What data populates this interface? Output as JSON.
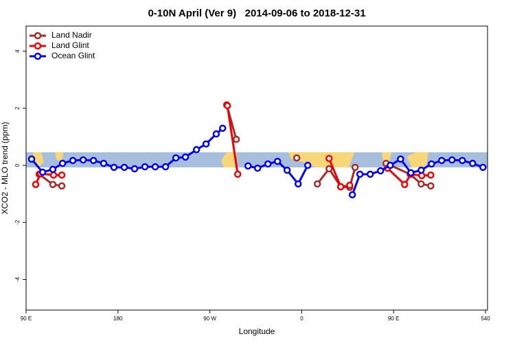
{
  "chart_data": {
    "type": "line",
    "title": "0-10N April (Ver 9)   2014-09-06 to 2018-12-31",
    "xlabel": "Longitude",
    "ylabel": "XCO2 - MLO trend (ppm)",
    "xlim": [
      90,
      542
    ],
    "ylim": [
      -5.07,
      4.88
    ],
    "xticks": [
      {
        "value": 90,
        "label": "90 E"
      },
      180,
      {
        "value": 270,
        "label": "90 W"
      },
      {
        "value": 360,
        "label": "0"
      },
      {
        "value": 450,
        "label": "90 E"
      },
      540
    ],
    "yticks": [
      -4,
      -2,
      0,
      2,
      4
    ],
    "legend": "top-left",
    "series": [
      {
        "name": "Land Nadir",
        "color": "#a52a2a",
        "x": [
          102.8,
          116.2,
          125,
          null,
          286.5,
          295.9,
          null,
          355.1,
          null,
          375.3,
          386.8,
          398.2,
          407,
          412.3,
          null,
          442.6,
          466.2,
          477,
          486.4
        ],
        "values": [
          -0.31,
          -0.67,
          -0.72,
          null,
          2.12,
          0.91,
          null,
          0.26,
          null,
          -0.65,
          -0.12,
          -0.75,
          -0.77,
          -0.07,
          null,
          0.07,
          -0.31,
          -0.65,
          -0.72
        ]
      },
      {
        "name": "Land Glint",
        "color": "#ee0000",
        "x": [
          99.4,
          104.1,
          116.9,
          125,
          null,
          287.2,
          297.3,
          null,
          386.8,
          398.2,
          407,
          null,
          444,
          460.8,
          466.9,
          477.6,
          486.4
        ],
        "values": [
          -0.67,
          -0.29,
          -0.34,
          -0.34,
          null,
          2.09,
          -0.31,
          null,
          0.24,
          -0.75,
          -0.7,
          null,
          -0.1,
          -0.67,
          -0.31,
          -0.36,
          -0.34
        ]
      },
      {
        "name": "Ocean Glint",
        "color": "#0000ee",
        "x": [
          95.4,
          106.2,
          116.2,
          125.7,
          135.8,
          145.9,
          156,
          166,
          176.1,
          186.2,
          196.3,
          206.4,
          216.5,
          226.6,
          236.7,
          246.1,
          256.9,
          266.3,
          276.3,
          282.5,
          null,
          307.4,
          316.8,
          326.9,
          336.3,
          345.7,
          356.5,
          365.9,
          null,
          409.6,
          417,
          427.1,
          437.2,
          446.7,
          456.8,
          466.9,
          477,
          487.1,
          497.1,
          507.2,
          517.3,
          527.4,
          537.5
        ],
        "values": [
          0.22,
          -0.24,
          -0.14,
          0.07,
          0.17,
          0.19,
          0.17,
          0.07,
          -0.07,
          -0.07,
          -0.12,
          -0.05,
          -0.05,
          -0.05,
          0.26,
          0.29,
          0.55,
          0.75,
          1.1,
          1.3,
          null,
          -0.02,
          -0.1,
          0.05,
          0.14,
          -0.17,
          -0.65,
          0,
          null,
          -1.03,
          -0.31,
          -0.31,
          -0.19,
          0,
          0.22,
          -0.26,
          -0.17,
          0.05,
          0.17,
          0.19,
          0.17,
          0.07,
          -0.07
        ]
      }
    ]
  }
}
